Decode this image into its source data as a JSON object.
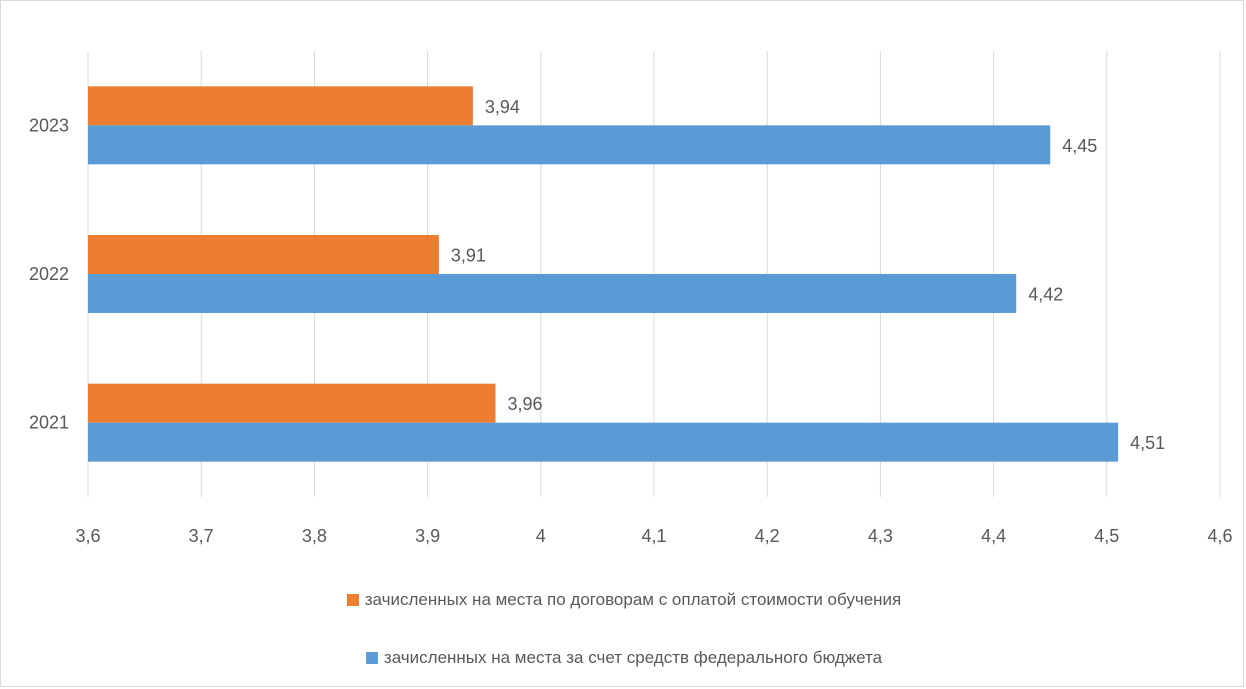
{
  "chart_data": {
    "type": "bar",
    "orientation": "horizontal",
    "categories": [
      "2021",
      "2022",
      "2023"
    ],
    "series": [
      {
        "name": "зачисленных на места по договорам с оплатой стоимости обучения",
        "color": "#ed7d31",
        "values": [
          3.96,
          3.91,
          3.94
        ],
        "labels": [
          "3,96",
          "3,91",
          "3,94"
        ]
      },
      {
        "name": "зачисленных на места за счет средств федерального бюджета",
        "color": "#5b9bd5",
        "values": [
          4.51,
          4.42,
          4.45
        ],
        "labels": [
          "4,51",
          "4,42",
          "4,45"
        ]
      }
    ],
    "xlim": [
      3.6,
      4.6
    ],
    "x_ticks": [
      "3,6",
      "3,7",
      "3,8",
      "3,9",
      "4",
      "4,1",
      "4,2",
      "4,3",
      "4,4",
      "4,5",
      "4,6"
    ],
    "grid": true,
    "legend_position": "bottom"
  }
}
